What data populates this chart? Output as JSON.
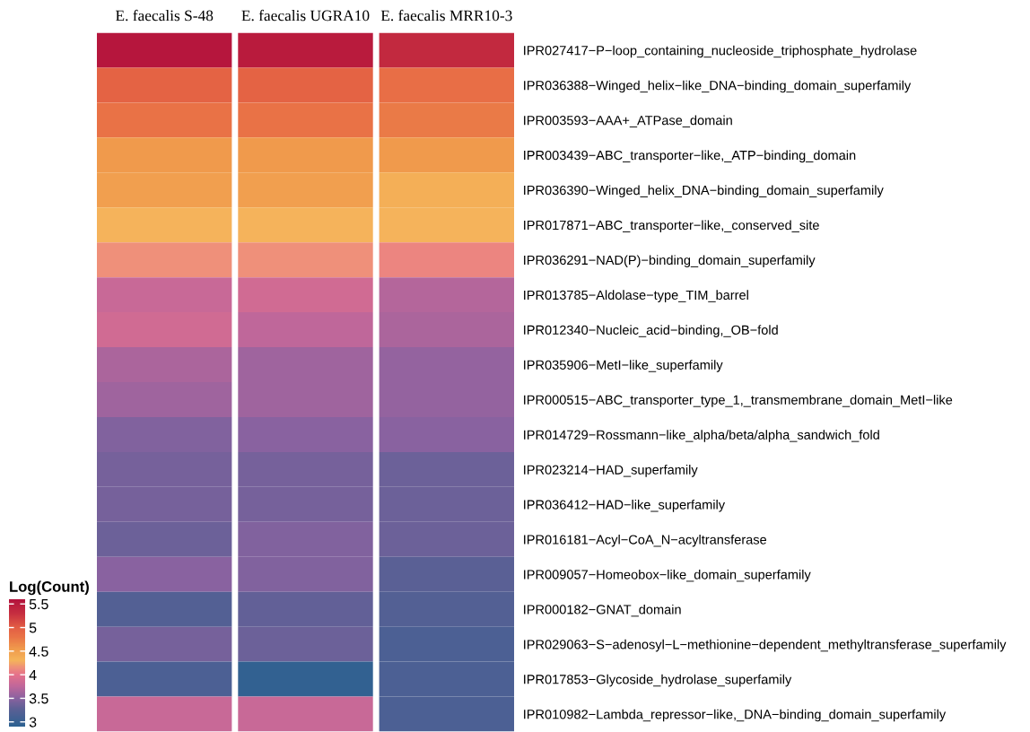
{
  "chart_data": {
    "type": "heatmap",
    "categories": [
      "E. faecalis S-48",
      "E. faecalis UGRA10",
      "E. faecalis MRR10-3"
    ],
    "y_categories": [
      "IPR027417−P−loop_containing_nucleoside_triphosphate_hydrolase",
      "IPR036388−Winged_helix−like_DNA−binding_domain_superfamily",
      "IPR003593−AAA+_ATPase_domain",
      "IPR003439−ABC_transporter−like,_ATP−binding_domain",
      "IPR036390−Winged_helix_DNA−binding_domain_superfamily",
      "IPR017871−ABC_transporter−like,_conserved_site",
      "IPR036291−NAD(P)−binding_domain_superfamily",
      "IPR013785−Aldolase−type_TIM_barrel",
      "IPR012340−Nucleic_acid−binding,_OB−fold",
      "IPR035906−MetI−like_superfamily",
      "IPR000515−ABC_transporter_type_1,_transmembrane_domain_MetI−like",
      "IPR014729−Rossmann−like_alpha/beta/alpha_sandwich_fold",
      "IPR023214−HAD_superfamily",
      "IPR036412−HAD−like_superfamily",
      "IPR016181−Acyl−CoA_N−acyltransferase",
      "IPR009057−Homeobox−like_domain_superfamily",
      "IPR000182−GNAT_domain",
      "IPR029063−S−adenosyl−L−methionine−dependent_methyltransferase_superfamily",
      "IPR017853−Glycoside_hydrolase_superfamily",
      "IPR010982−Lambda_repressor−like,_DNA−binding_domain_superfamily"
    ],
    "cells": [
      [
        5.55,
        5.5,
        5.35
      ],
      [
        4.95,
        4.95,
        4.85
      ],
      [
        4.8,
        4.8,
        4.75
      ],
      [
        4.55,
        4.55,
        4.55
      ],
      [
        4.5,
        4.5,
        4.35
      ],
      [
        4.3,
        4.3,
        4.3
      ],
      [
        4.15,
        4.15,
        4.1
      ],
      [
        3.8,
        3.85,
        3.7
      ],
      [
        3.85,
        3.75,
        3.65
      ],
      [
        3.65,
        3.6,
        3.55
      ],
      [
        3.6,
        3.6,
        3.55
      ],
      [
        3.45,
        3.5,
        3.5
      ],
      [
        3.4,
        3.4,
        3.35
      ],
      [
        3.4,
        3.4,
        3.35
      ],
      [
        3.35,
        3.45,
        3.35
      ],
      [
        3.5,
        3.45,
        3.25
      ],
      [
        3.2,
        3.3,
        3.2
      ],
      [
        3.4,
        3.35,
        3.15
      ],
      [
        3.15,
        2.95,
        3.15
      ],
      [
        3.8,
        3.8,
        3.15
      ]
    ],
    "clim": [
      2.9,
      5.6
    ],
    "cticks": [
      3,
      3.5,
      4,
      4.5,
      5,
      5.5
    ],
    "clabel": "Log(Count)"
  }
}
